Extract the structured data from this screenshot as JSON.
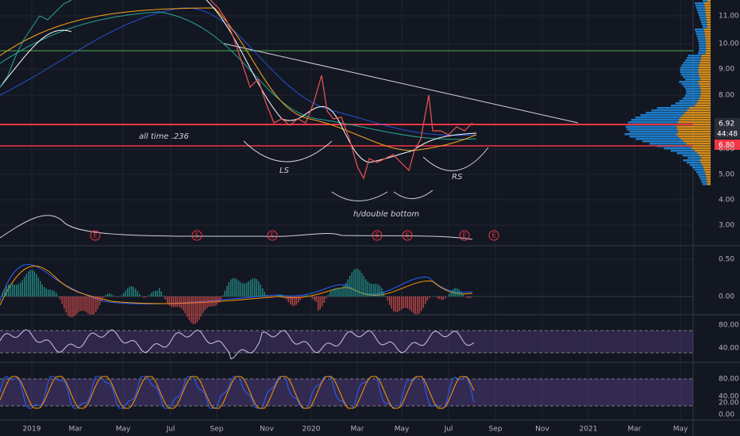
{
  "price_axis": [
    "11.00",
    "10.00",
    "9.00",
    "8.00",
    "6.00",
    "5.00",
    "4.00",
    "3.00"
  ],
  "price_tags": {
    "last": "6.92",
    "countdown": "44:48",
    "level": "6.80"
  },
  "macd_axis": [
    "0.50",
    "0.00"
  ],
  "rsi_axis": [
    "80.00",
    "40.00"
  ],
  "stoch_axis": [
    "80.00",
    "40.00",
    "20.00",
    "0.00"
  ],
  "time_axis": [
    "2019",
    "Mar",
    "May",
    "Jul",
    "Sep",
    "Nov",
    "2020",
    "Mar",
    "May",
    "Jul",
    "Sep",
    "Nov",
    "2021",
    "Mar",
    "May"
  ],
  "annotations": {
    "fib": "all time .236",
    "left_shoulder": "LS",
    "head": "h/double bottom",
    "right_shoulder": "RS"
  },
  "earnings_marker": "E"
}
